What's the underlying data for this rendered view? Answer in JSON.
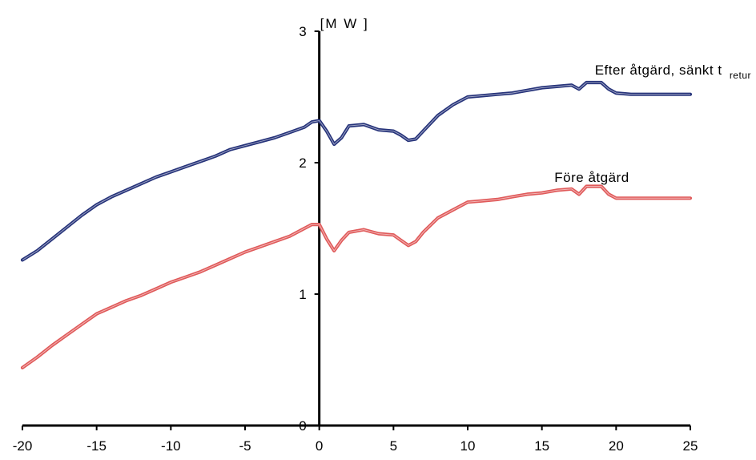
{
  "chart_data": {
    "type": "line",
    "ylabel": "[M W ]",
    "xlim": [
      -20,
      25
    ],
    "ylim": [
      0,
      3
    ],
    "x_ticks": [
      -20,
      -15,
      -10,
      -5,
      0,
      5,
      10,
      15,
      20,
      25
    ],
    "y_ticks": [
      1,
      2,
      3
    ],
    "y_zero_label": "0",
    "grid": false,
    "legend": "none",
    "series": [
      {
        "name": "Efter åtgärd, sänkt t",
        "name_sub": "retur",
        "color": "#26337a",
        "x": [
          -20,
          -19,
          -18,
          -17,
          -16,
          -15,
          -14,
          -13,
          -12,
          -11,
          -10,
          -9,
          -8,
          -7,
          -6,
          -5,
          -4,
          -3,
          -2,
          -1,
          -0.5,
          0,
          0.5,
          1,
          1.5,
          2,
          3,
          4,
          5,
          5.5,
          6,
          6.5,
          7,
          8,
          9,
          10,
          11,
          12,
          13,
          14,
          15,
          16,
          17,
          17.5,
          18,
          19,
          19.5,
          20,
          21,
          22,
          23,
          24,
          25
        ],
        "y": [
          1.26,
          1.33,
          1.42,
          1.51,
          1.6,
          1.68,
          1.74,
          1.79,
          1.84,
          1.89,
          1.93,
          1.97,
          2.01,
          2.05,
          2.1,
          2.13,
          2.16,
          2.19,
          2.23,
          2.27,
          2.31,
          2.32,
          2.24,
          2.14,
          2.19,
          2.28,
          2.29,
          2.25,
          2.24,
          2.21,
          2.17,
          2.18,
          2.24,
          2.36,
          2.44,
          2.5,
          2.51,
          2.52,
          2.53,
          2.55,
          2.57,
          2.58,
          2.59,
          2.56,
          2.61,
          2.61,
          2.56,
          2.53,
          2.52,
          2.52,
          2.52,
          2.52,
          2.52
        ]
      },
      {
        "name": "Före åtgärd",
        "color": "#e05a5a",
        "x": [
          -20,
          -19,
          -18,
          -17,
          -16,
          -15,
          -14,
          -13,
          -12,
          -11,
          -10,
          -9,
          -8,
          -7,
          -6,
          -5,
          -4,
          -3,
          -2,
          -1,
          -0.5,
          0,
          0.5,
          1,
          1.5,
          2,
          3,
          4,
          5,
          5.5,
          6,
          6.5,
          7,
          8,
          9,
          10,
          11,
          12,
          13,
          14,
          15,
          16,
          17,
          17.5,
          18,
          19,
          19.5,
          20,
          21,
          22,
          23,
          24,
          25
        ],
        "y": [
          0.44,
          0.52,
          0.61,
          0.69,
          0.77,
          0.85,
          0.9,
          0.95,
          0.99,
          1.04,
          1.09,
          1.13,
          1.17,
          1.22,
          1.27,
          1.32,
          1.36,
          1.4,
          1.44,
          1.5,
          1.53,
          1.53,
          1.42,
          1.33,
          1.41,
          1.47,
          1.49,
          1.46,
          1.45,
          1.41,
          1.37,
          1.4,
          1.47,
          1.58,
          1.64,
          1.7,
          1.71,
          1.72,
          1.74,
          1.76,
          1.77,
          1.79,
          1.8,
          1.76,
          1.82,
          1.82,
          1.76,
          1.73,
          1.73,
          1.73,
          1.73,
          1.73,
          1.73
        ]
      }
    ]
  }
}
